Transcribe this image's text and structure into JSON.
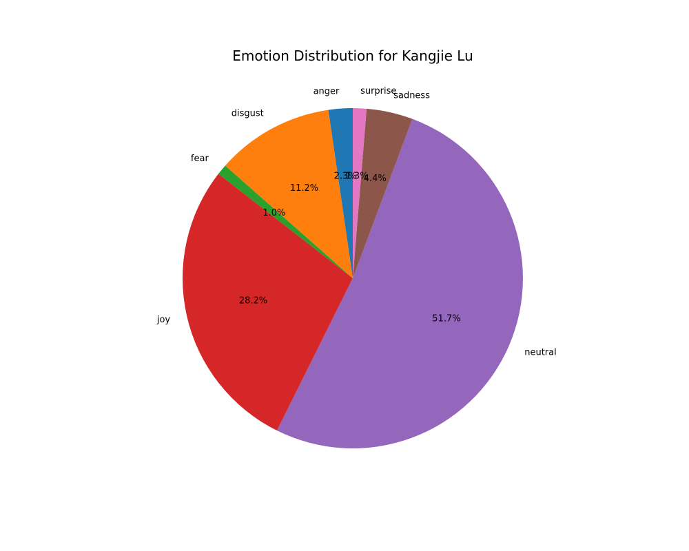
{
  "chart_data": {
    "type": "pie",
    "title": "Emotion Distribution for Kangjie Lu",
    "start_angle_deg": 90,
    "direction": "counterclockwise",
    "slices": [
      {
        "label": "anger",
        "value": 2.3,
        "pct_label": "2.3%",
        "color": "#1f77b4"
      },
      {
        "label": "disgust",
        "value": 11.2,
        "pct_label": "11.2%",
        "color": "#ff7f0e"
      },
      {
        "label": "fear",
        "value": 1.0,
        "pct_label": "1.0%",
        "color": "#2ca02c"
      },
      {
        "label": "joy",
        "value": 28.2,
        "pct_label": "28.2%",
        "color": "#d62728"
      },
      {
        "label": "neutral",
        "value": 51.7,
        "pct_label": "51.7%",
        "color": "#9467bd"
      },
      {
        "label": "sadness",
        "value": 4.4,
        "pct_label": "4.4%",
        "color": "#8c564b"
      },
      {
        "label": "surprise",
        "value": 1.3,
        "pct_label": "1.3%",
        "color": "#e377c2"
      }
    ]
  }
}
